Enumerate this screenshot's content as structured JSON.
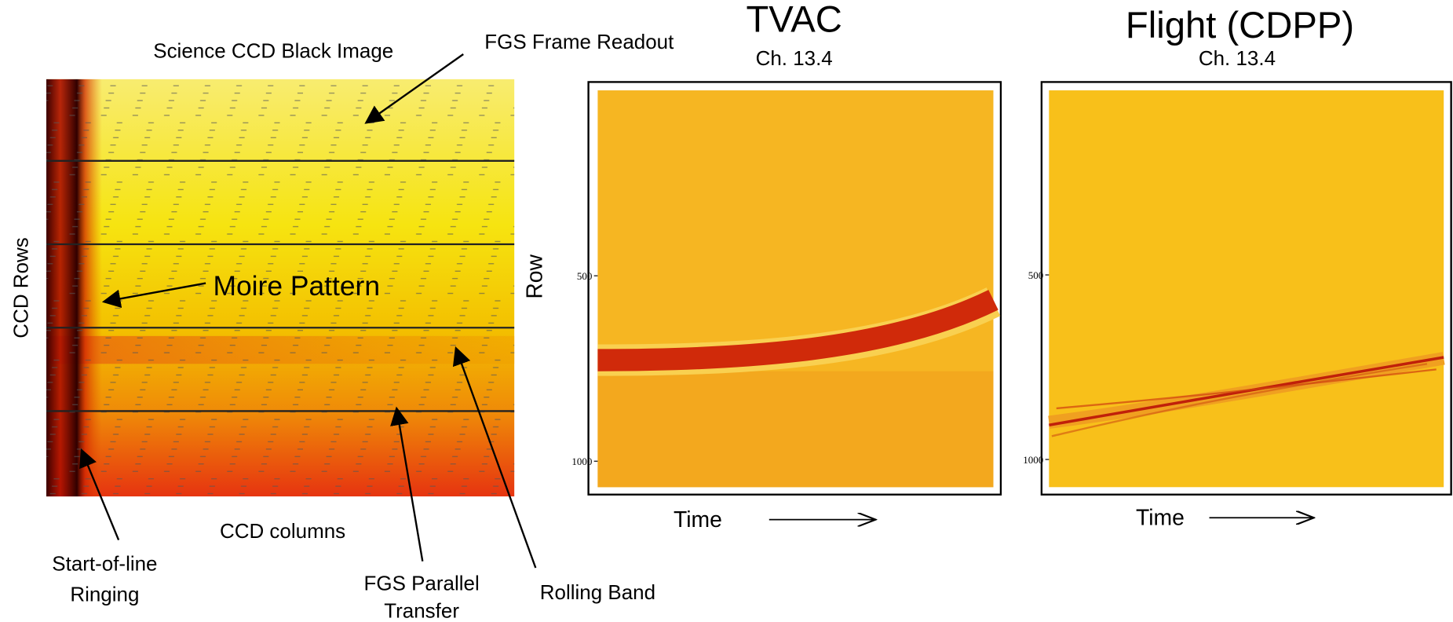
{
  "left_panel": {
    "title": "Science CCD Black Image",
    "x_label": "CCD columns",
    "y_label": "CCD Rows",
    "annotations": {
      "frame_readout": "FGS Frame Readout",
      "moire": "Moire Pattern",
      "ringing": [
        "Start-of-line",
        "Ringing"
      ],
      "parallel_transfer": [
        "FGS Parallel",
        "Transfer"
      ],
      "rolling_band": "Rolling Band"
    }
  },
  "panels": [
    {
      "title": "TVAC",
      "subtitle": "Ch. 13.4",
      "y_label": "Row",
      "x_label": "Time",
      "ylim": [
        0,
        1070
      ],
      "yticks": [
        500,
        1000
      ]
    },
    {
      "title": "Flight (CDPP)",
      "subtitle": "Ch. 13.4",
      "x_label": "Time",
      "ylim": [
        0,
        1075
      ],
      "yticks": [
        500,
        1000
      ]
    }
  ]
}
